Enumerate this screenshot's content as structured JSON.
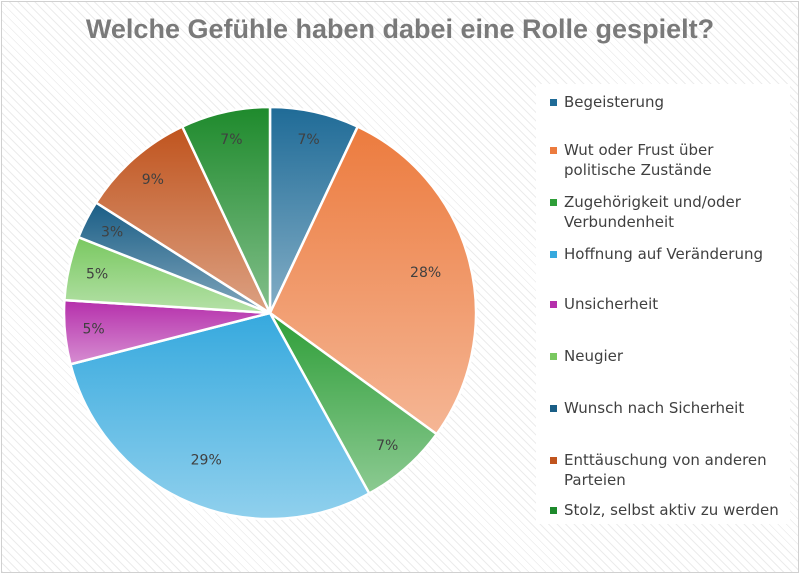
{
  "chart_data": {
    "type": "pie",
    "title": "Welche Gefühle haben dabei eine Rolle gespielt?",
    "legend_position": "right",
    "slices": [
      {
        "label": "Begeisterung",
        "value": 7,
        "value_label": "7%",
        "color": "#1f6b97"
      },
      {
        "label": "Wut oder Frust über politische Zustände",
        "value": 28,
        "value_label": "28%",
        "color": "#ec7b3e"
      },
      {
        "label": "Zugehörigkeit und/oder Verbundenheit",
        "value": 7,
        "value_label": "7%",
        "color": "#2e9e38"
      },
      {
        "label": "Hoffnung auf Veränderung",
        "value": 29,
        "value_label": "29%",
        "color": "#36a9de"
      },
      {
        "label": "Unsicherheit",
        "value": 5,
        "value_label": "5%",
        "color": "#b52fab"
      },
      {
        "label": "Neugier",
        "value": 5,
        "value_label": "5%",
        "color": "#79c860"
      },
      {
        "label": "Wunsch nach Sicherheit",
        "value": 3,
        "value_label": "3%",
        "color": "#1a5e86"
      },
      {
        "label": "Enttäuschung von anderen Parteien",
        "value": 9,
        "value_label": "9%",
        "color": "#c0541e"
      },
      {
        "label": "Stolz, selbst aktiv zu werden",
        "value": 7,
        "value_label": "7%",
        "color": "#1e8a2c"
      }
    ]
  }
}
